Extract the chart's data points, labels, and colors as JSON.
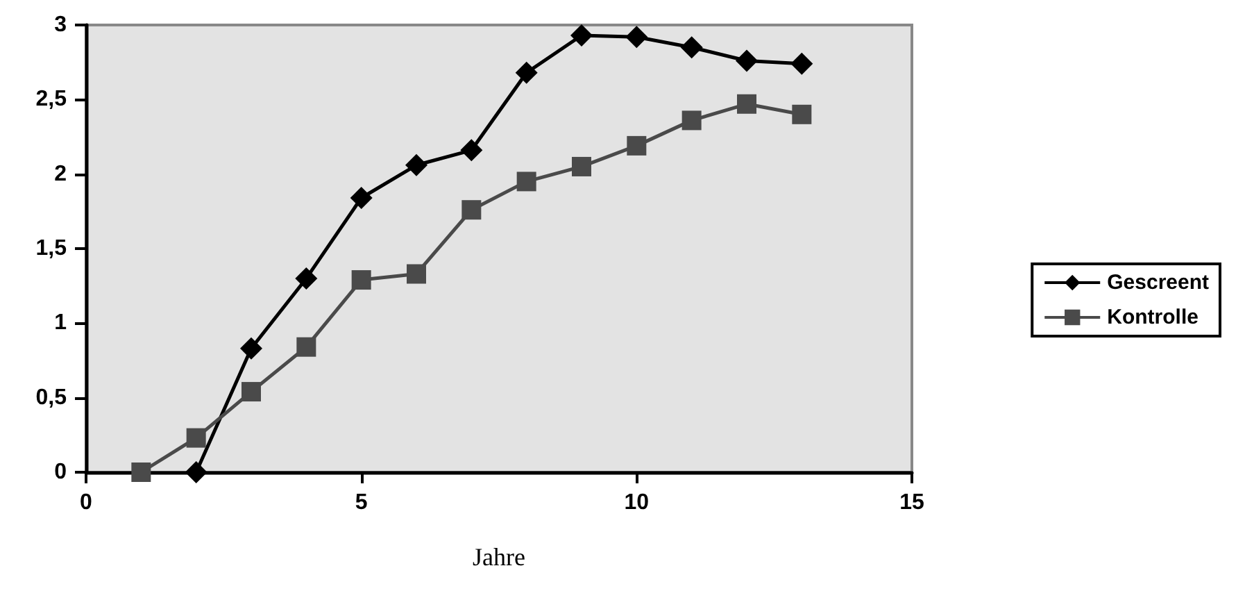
{
  "chart_data": {
    "type": "line",
    "xlabel": "Jahre",
    "xlim": [
      0,
      15
    ],
    "xticks": [
      0,
      5,
      10,
      15
    ],
    "ylim": [
      0,
      3
    ],
    "yticks": [
      0,
      {
        "value": 0.5,
        "label": "0,5"
      },
      1,
      {
        "value": 1.5,
        "label": "1,5"
      },
      2,
      {
        "value": 2.5,
        "label": "2,5"
      },
      3
    ],
    "grid": false,
    "legend": "right",
    "series": [
      {
        "name": "Gescreent",
        "color": "#000000",
        "marker": "diamond",
        "x": [
          2,
          3,
          4,
          5,
          6,
          7,
          8,
          9,
          10,
          11,
          12,
          13
        ],
        "values": [
          0,
          0.83,
          1.3,
          1.84,
          2.06,
          2.16,
          2.68,
          2.93,
          2.92,
          2.85,
          2.76,
          2.74
        ]
      },
      {
        "name": "Kontrolle",
        "color": "#4a4a4a",
        "marker": "square",
        "x": [
          1,
          2,
          3,
          4,
          5,
          6,
          7,
          8,
          9,
          10,
          11,
          12,
          13
        ],
        "values": [
          0,
          0.23,
          0.54,
          0.84,
          1.29,
          1.33,
          1.76,
          1.95,
          2.05,
          2.19,
          2.36,
          2.47,
          2.4
        ]
      }
    ]
  }
}
